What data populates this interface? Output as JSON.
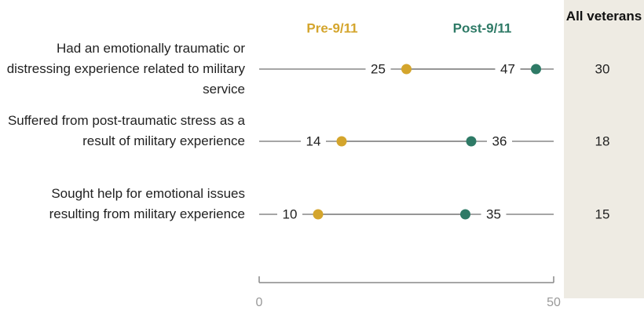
{
  "chart_data": {
    "type": "dot",
    "categories": [
      "Had an emotionally traumatic or distressing experience related to military service",
      "Suffered from post-traumatic stress as a result of military experience",
      "Sought help for emotional issues resulting from military experience"
    ],
    "series": [
      {
        "name": "Pre-9/11",
        "color": "#d4a52c",
        "values": [
          25,
          14,
          10
        ]
      },
      {
        "name": "Post-9/11",
        "color": "#2e7a66",
        "values": [
          47,
          36,
          35
        ]
      }
    ],
    "all_veterans": {
      "name": "All veterans",
      "values": [
        30,
        18,
        15
      ]
    },
    "xlim": [
      0,
      50
    ],
    "xticks": [
      0,
      50
    ]
  }
}
